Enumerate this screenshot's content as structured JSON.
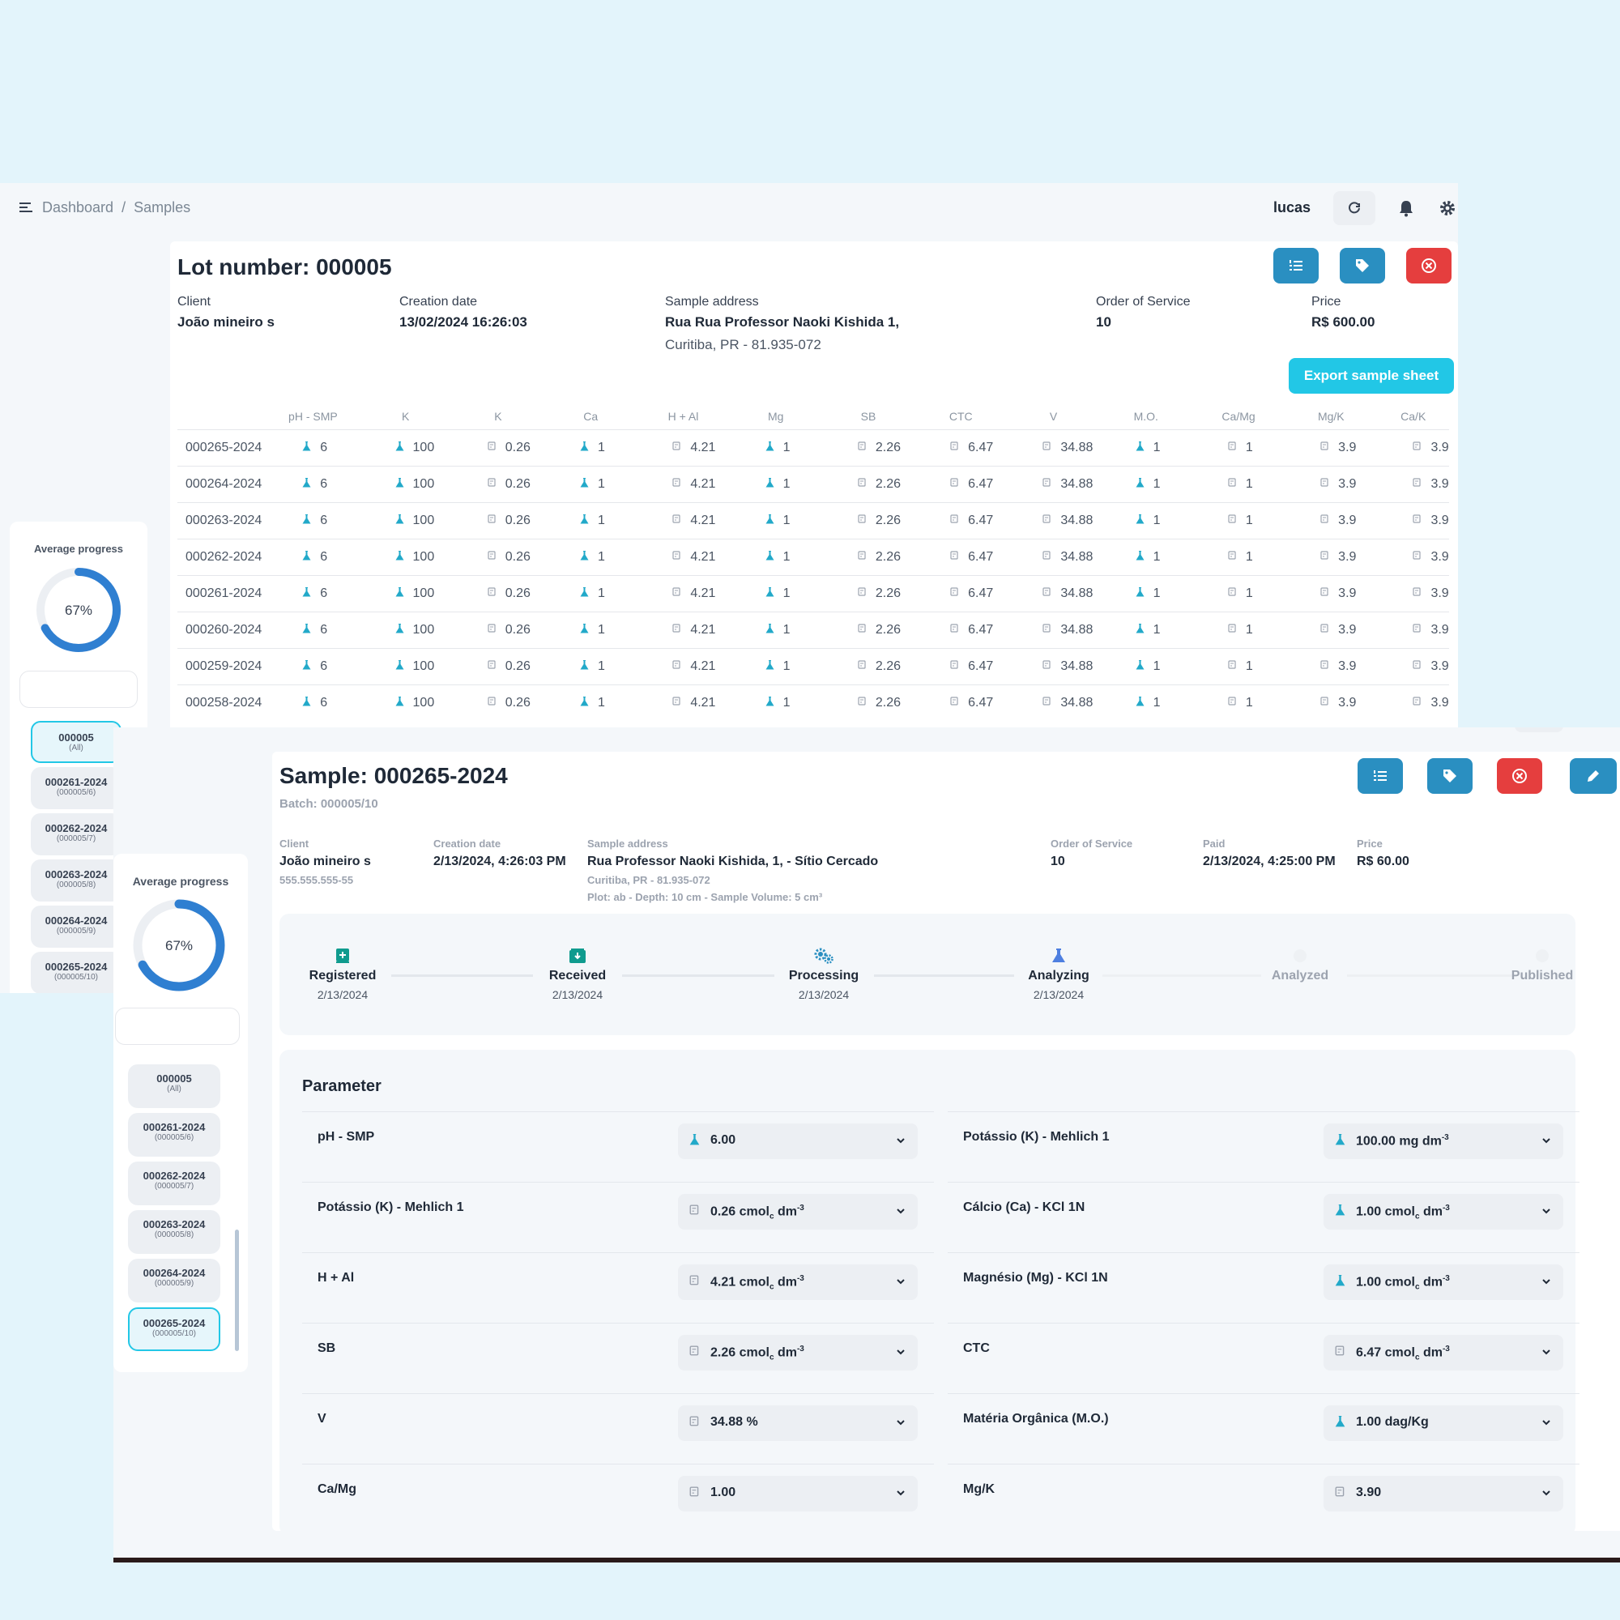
{
  "breadcrumb": {
    "home": "Dashboard",
    "separator": "/",
    "current": "Samples"
  },
  "user": {
    "name": "lucas"
  },
  "lot": {
    "title": "Lot number: 000005",
    "client_label": "Client",
    "client": "João mineiro s",
    "creation_label": "Creation date",
    "creation": "13/02/2024 16:26:03",
    "address_label": "Sample address",
    "address_line1": "Rua Rua Professor Naoki Kishida 1,",
    "address_line2": "Curitiba, PR - 81.935-072",
    "os_label": "Order of Service",
    "os": "10",
    "price_label": "Price",
    "price": "R$ 600.00",
    "export_label": "Export sample sheet",
    "columns": [
      "pH - SMP",
      "K",
      "K",
      "Ca",
      "H + Al",
      "Mg",
      "SB",
      "CTC",
      "V",
      "M.O.",
      "Ca/Mg",
      "Mg/K",
      "Ca/K"
    ],
    "column_icons": [
      "flask",
      "flask",
      "calc",
      "flask",
      "calc",
      "flask",
      "calc",
      "calc",
      "calc",
      "flask",
      "calc",
      "calc",
      "calc"
    ],
    "values": [
      "6",
      "100",
      "0.26",
      "1",
      "4.21",
      "1",
      "2.26",
      "6.47",
      "34.88",
      "1",
      "1",
      "3.9",
      "3.9"
    ],
    "rows": [
      "000265-2024",
      "000264-2024",
      "000263-2024",
      "000262-2024",
      "000261-2024",
      "000260-2024",
      "000259-2024",
      "000258-2024"
    ]
  },
  "sidebar": {
    "avg_label": "Average progress",
    "avg_value": "67%",
    "avg_fraction": 0.67,
    "items": [
      {
        "id": "000005",
        "sub": "(All)"
      },
      {
        "id": "000261-2024",
        "sub": "(000005/6)"
      },
      {
        "id": "000262-2024",
        "sub": "(000005/7)"
      },
      {
        "id": "000263-2024",
        "sub": "(000005/8)"
      },
      {
        "id": "000264-2024",
        "sub": "(000005/9)"
      },
      {
        "id": "000265-2024",
        "sub": "(000005/10)"
      }
    ]
  },
  "sample": {
    "title": "Sample: 000265-2024",
    "batch": "Batch: 000005/10",
    "client_label": "Client",
    "client": "João mineiro s",
    "client_doc": "555.555.555-55",
    "creation_label": "Creation date",
    "creation": "2/13/2024, 4:26:03 PM",
    "address_label": "Sample address",
    "address": "Rua Professor Naoki Kishida, 1, - Sítio Cercado",
    "address_city": "Curitiba, PR - 81.935-072",
    "address_plot": "Plot: ab - Depth: 10 cm - Sample Volume: 5 cm³",
    "os_label": "Order of Service",
    "os": "10",
    "paid_label": "Paid",
    "paid": "2/13/2024, 4:25:00 PM",
    "price_label": "Price",
    "price": "R$ 60.00",
    "steps": [
      {
        "label": "Registered",
        "date": "2/13/2024"
      },
      {
        "label": "Received",
        "date": "2/13/2024"
      },
      {
        "label": "Processing",
        "date": "2/13/2024"
      },
      {
        "label": "Analyzing",
        "date": "2/13/2024"
      },
      {
        "label": "Analyzed",
        "date": ""
      },
      {
        "label": "Published",
        "date": ""
      }
    ],
    "param_title": "Parameter",
    "params": [
      {
        "name": "pH - SMP",
        "value": "6.00",
        "unit": "",
        "icon": "flask"
      },
      {
        "name": "Potássio (K) - Mehlich 1",
        "value": "100.00 mg dm",
        "unit": "-3",
        "icon": "flask"
      },
      {
        "name": "Potássio (K) - Mehlich 1",
        "value": "0.26 cmol",
        "unit": "-3",
        "icon": "calc"
      },
      {
        "name": "Cálcio (Ca) - KCl 1N",
        "value": "1.00 cmol",
        "unit": "-3",
        "icon": "flask"
      },
      {
        "name": "H + Al",
        "value": "4.21 cmol",
        "unit": "-3",
        "icon": "calc"
      },
      {
        "name": "Magnésio (Mg) - KCl 1N",
        "value": "1.00 cmol",
        "unit": "-3",
        "icon": "flask"
      },
      {
        "name": "SB",
        "value": "2.26 cmol",
        "unit": "-3",
        "icon": "calc"
      },
      {
        "name": "CTC",
        "value": "6.47 cmol",
        "unit": "-3",
        "icon": "calc"
      },
      {
        "name": "V",
        "value": "34.88 %",
        "unit": "",
        "icon": "calc"
      },
      {
        "name": "Matéria Orgânica (M.O.)",
        "value": "1.00 dag/Kg",
        "unit": "",
        "icon": "flask"
      },
      {
        "name": "Ca/Mg",
        "value": "1.00",
        "unit": "",
        "icon": "calc"
      },
      {
        "name": "Mg/K",
        "value": "3.90",
        "unit": "",
        "icon": "calc"
      }
    ]
  },
  "colors": {
    "accent": "#22c7e6",
    "primary": "#2a8fc1",
    "danger": "#e53e3e",
    "donut": "#2f7fd1"
  }
}
